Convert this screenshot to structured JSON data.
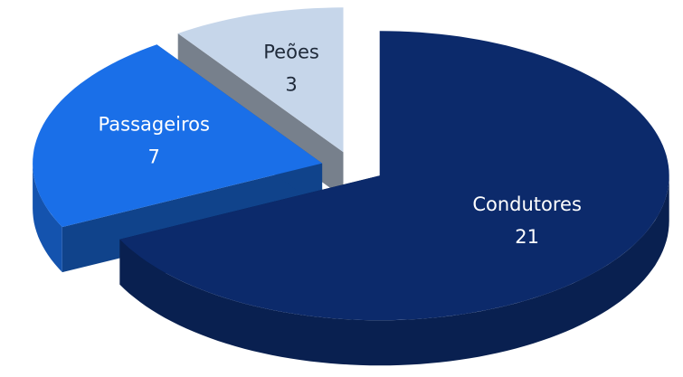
{
  "chart_data": {
    "type": "pie3d",
    "categories": [
      "Condutores",
      "Passageiros",
      "Peões"
    ],
    "values": [
      21,
      7,
      3
    ],
    "colors": [
      "#0c2a6b",
      "#1a6fe8",
      "#c6d6ea"
    ]
  }
}
